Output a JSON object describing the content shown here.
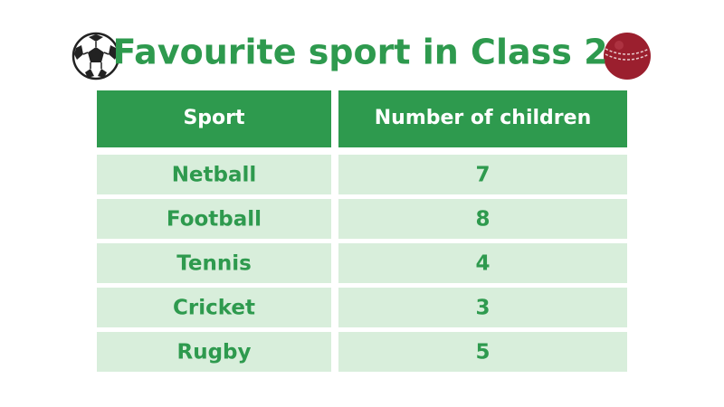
{
  "header": {
    "title": "Favourite sport in Class 2"
  },
  "table": {
    "columns": [
      "Sport",
      "Number of children"
    ],
    "rows": [
      [
        "Netball",
        7
      ],
      [
        "Football",
        8
      ],
      [
        "Tennis",
        4
      ],
      [
        "Cricket",
        3
      ],
      [
        "Rugby",
        5
      ]
    ]
  }
}
